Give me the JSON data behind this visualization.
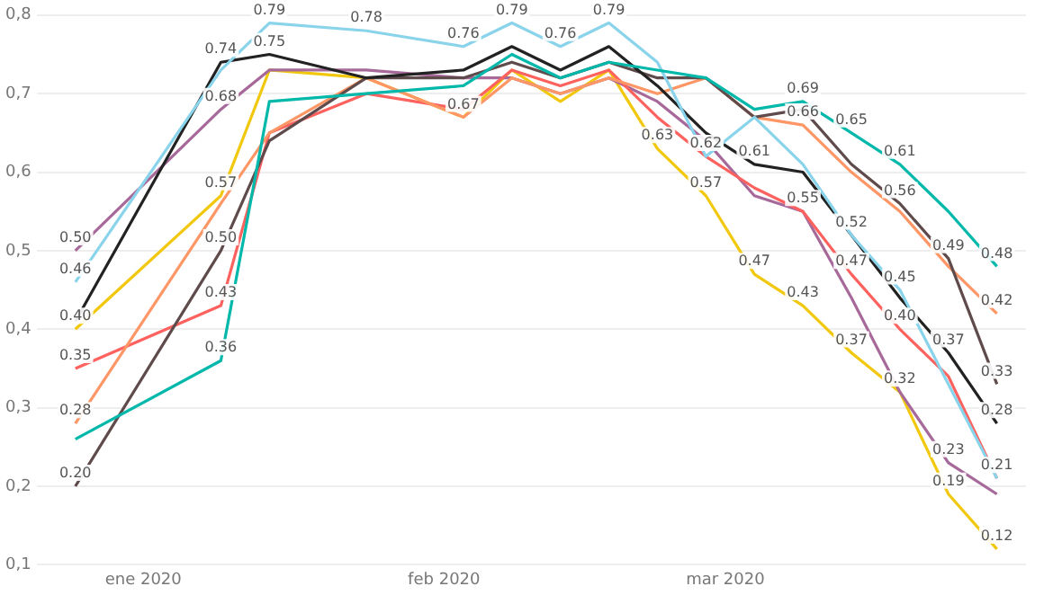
{
  "chart_data": {
    "type": "line",
    "x": [
      "2019-12-25",
      "2020-01-09",
      "2020-01-14",
      "2020-01-24",
      "2020-02-03",
      "2020-02-08",
      "2020-02-13",
      "2020-02-18",
      "2020-02-23",
      "2020-02-28",
      "2020-03-04",
      "2020-03-09",
      "2020-03-14",
      "2020-03-19",
      "2020-03-24",
      "2020-03-29"
    ],
    "series": [
      {
        "color": "#01b8aa",
        "values": [
          0.26,
          0.36,
          0.69,
          0.7,
          0.71,
          0.75,
          0.72,
          0.74,
          0.73,
          0.72,
          0.68,
          0.69,
          0.65,
          0.61,
          0.55,
          0.48
        ],
        "value_labels": [
          null,
          "0.36",
          null,
          null,
          null,
          null,
          null,
          null,
          null,
          null,
          null,
          "0.69",
          "0.65",
          "0.61",
          null,
          "0.48"
        ]
      },
      {
        "color": "#8ad4eb",
        "values": [
          0.46,
          0.73,
          0.79,
          0.78,
          0.76,
          0.79,
          0.76,
          0.79,
          0.74,
          0.62,
          0.67,
          0.61,
          0.52,
          0.45,
          0.33,
          0.21
        ],
        "value_labels": [
          "0.46",
          null,
          "0.79",
          "0.78",
          "0.76",
          "0.79",
          "0.76",
          "0.79",
          null,
          "0.62",
          null,
          null,
          null,
          "0.45",
          null,
          "0.21"
        ]
      },
      {
        "color": "#222222",
        "values": [
          0.41,
          0.74,
          0.75,
          0.72,
          0.73,
          0.76,
          0.73,
          0.76,
          0.71,
          0.65,
          0.61,
          0.6,
          0.52,
          0.44,
          0.37,
          0.28
        ],
        "value_labels": [
          null,
          "0.74",
          "0.75",
          null,
          null,
          null,
          null,
          null,
          null,
          null,
          "0.61",
          null,
          "0.52",
          null,
          "0.37",
          "0.28"
        ]
      },
      {
        "color": "#5f4b4b",
        "values": [
          0.2,
          0.5,
          0.64,
          0.72,
          0.72,
          0.74,
          0.72,
          0.74,
          0.72,
          0.72,
          0.67,
          0.68,
          0.61,
          0.56,
          0.49,
          0.33
        ],
        "value_labels": [
          "0.20",
          "0.50",
          null,
          null,
          null,
          null,
          null,
          null,
          null,
          null,
          null,
          null,
          null,
          "0.56",
          "0.49",
          "0.33"
        ]
      },
      {
        "color": "#fe9666",
        "values": [
          0.28,
          0.56,
          0.65,
          0.72,
          0.67,
          0.72,
          0.7,
          0.72,
          0.7,
          0.72,
          0.67,
          0.66,
          0.6,
          0.55,
          0.48,
          0.42
        ],
        "value_labels": [
          "0.28",
          null,
          null,
          null,
          null,
          null,
          null,
          null,
          null,
          null,
          null,
          "0.66",
          null,
          null,
          null,
          "0.42"
        ]
      },
      {
        "color": "#fd625e",
        "values": [
          0.35,
          0.43,
          0.65,
          0.7,
          0.68,
          0.73,
          0.71,
          0.73,
          0.67,
          0.62,
          0.58,
          0.55,
          0.47,
          0.4,
          0.34,
          0.21
        ],
        "value_labels": [
          "0.35",
          "0.43",
          null,
          null,
          null,
          null,
          null,
          null,
          null,
          null,
          null,
          null,
          "0.47",
          "0.40",
          null,
          null
        ]
      },
      {
        "color": "#a66999",
        "values": [
          0.5,
          0.68,
          0.73,
          0.73,
          0.72,
          0.72,
          0.7,
          0.72,
          0.69,
          0.64,
          0.57,
          0.55,
          0.44,
          0.32,
          0.23,
          0.19
        ],
        "value_labels": [
          "0.50",
          "0.68",
          null,
          null,
          null,
          null,
          null,
          null,
          null,
          null,
          null,
          "0.55",
          null,
          null,
          "0.23",
          null
        ]
      },
      {
        "color": "#f2c80f",
        "values": [
          0.4,
          0.57,
          0.73,
          0.72,
          0.67,
          0.73,
          0.69,
          0.73,
          0.63,
          0.57,
          0.47,
          0.43,
          0.37,
          0.32,
          0.19,
          0.12
        ],
        "value_labels": [
          "0.40",
          "0.57",
          null,
          null,
          "0.67",
          null,
          null,
          null,
          "0.63",
          "0.57",
          "0.47",
          "0.43",
          "0.37",
          "0.32",
          "0.19",
          "0.12"
        ]
      }
    ],
    "xlim": [
      "2019-12-21",
      "2020-04-01"
    ],
    "xticks": [
      {
        "value": "2020-01-01",
        "label": "ene 2020"
      },
      {
        "value": "2020-02-01",
        "label": "feb 2020"
      },
      {
        "value": "2020-03-01",
        "label": "mar 2020"
      }
    ],
    "ylim": [
      0.1,
      0.8
    ],
    "yticks": [
      {
        "value": 0.1,
        "label": "0,1"
      },
      {
        "value": 0.2,
        "label": "0,2"
      },
      {
        "value": 0.3,
        "label": "0,3"
      },
      {
        "value": 0.4,
        "label": "0,4"
      },
      {
        "value": 0.5,
        "label": "0,5"
      },
      {
        "value": 0.6,
        "label": "0,6"
      },
      {
        "value": 0.7,
        "label": "0,7"
      },
      {
        "value": 0.8,
        "label": "0,8"
      }
    ],
    "grid": "y",
    "marker": "none",
    "line_style": "solid"
  }
}
